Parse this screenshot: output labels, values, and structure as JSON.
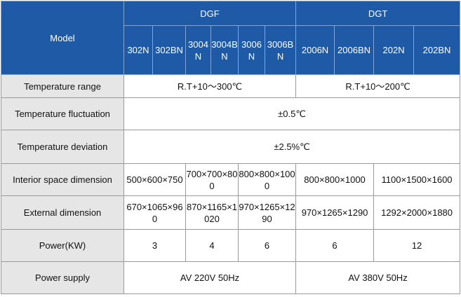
{
  "header": {
    "model_label": "Model",
    "group_dgf": "DGF",
    "group_dgt": "DGT",
    "models": [
      "302N",
      "302BN",
      "3004N",
      "3004BN",
      "3006N",
      "3006BN",
      "2006N",
      "2006BN",
      "202N",
      "202BN"
    ]
  },
  "rows": {
    "temperature_range": {
      "label": "Temperature range",
      "dgf": "R.T+10～300℃",
      "dgt": "R.T+10～200℃"
    },
    "temperature_fluctuation": {
      "label": "Temperature fluctuation",
      "all": "±0.5℃"
    },
    "temperature_deviation": {
      "label": "Temperature deviation",
      "all": "±2.5%℃"
    },
    "interior_space_dimension": {
      "label": "Interior space dimension",
      "values": [
        "500×600×750",
        "700×700×800",
        "800×800×1000",
        "800×800×1000",
        "1100×1500×1600"
      ]
    },
    "external_dimension": {
      "label": "External dimension",
      "values": [
        "670×1065×960",
        "870×1165×1020",
        "970×1265×1290",
        "970×1265×1290",
        "1292×2000×1880"
      ]
    },
    "power": {
      "label": "Power(KW)",
      "values": [
        "3",
        "4",
        "6",
        "6",
        "12"
      ]
    },
    "power_supply": {
      "label": "Power supply",
      "dgf": "AV 220V 50Hz",
      "dgt": "AV 380V 50Hz"
    }
  }
}
